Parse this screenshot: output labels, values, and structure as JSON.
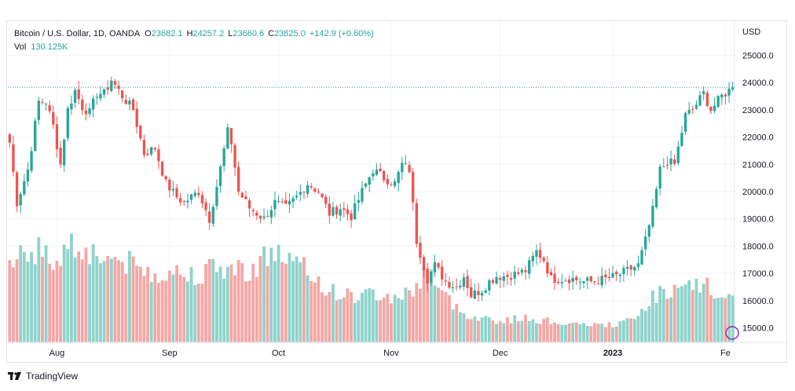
{
  "header": {
    "symbol": "Bitcoin / U.S. Dollar, 1D, OANDA",
    "open_label": "O",
    "open": "23682.1",
    "high_label": "H",
    "high": "24257.2",
    "low_label": "L",
    "low": "23660.6",
    "close_label": "C",
    "close": "23825.0",
    "change": "+142.9 (+0.60%)",
    "vol_label": "Vol",
    "vol": "130.125K"
  },
  "currency": "USD",
  "footer": {
    "brand": "TradingView"
  },
  "colors": {
    "up": "#26a69a",
    "down": "#ef5350",
    "vol_up": "#8fd3cb",
    "vol_down": "#f4a7a5",
    "grid": "#f0f3fa",
    "price_line": "#26a69a"
  },
  "chart_data": {
    "type": "candlestick",
    "symbol": "BTCUSD",
    "interval": "1D",
    "last_price": 23825.0,
    "y_ticks": [
      "15000.0",
      "16000.0",
      "17000.0",
      "18000.0",
      "19000.0",
      "20000.0",
      "21000.0",
      "22000.0",
      "23000.0",
      "24000.0",
      "25000.0"
    ],
    "y_range": [
      14470,
      26250
    ],
    "x_ticks": [
      {
        "label": "Aug",
        "index": 13
      },
      {
        "label": "Sep",
        "index": 44
      },
      {
        "label": "Oct",
        "index": 74
      },
      {
        "label": "Nov",
        "index": 105
      },
      {
        "label": "Dec",
        "index": 135
      },
      {
        "label": "2023",
        "index": 166
      },
      {
        "label": "Fe",
        "index": 197
      }
    ],
    "close_anchors": [
      [
        0,
        21800
      ],
      [
        2,
        19600
      ],
      [
        5,
        20800
      ],
      [
        8,
        23300
      ],
      [
        10,
        23300
      ],
      [
        12,
        22400
      ],
      [
        14,
        21000
      ],
      [
        16,
        23000
      ],
      [
        18,
        23700
      ],
      [
        20,
        23100
      ],
      [
        22,
        22900
      ],
      [
        24,
        23600
      ],
      [
        26,
        23600
      ],
      [
        28,
        24100
      ],
      [
        31,
        23500
      ],
      [
        34,
        23000
      ],
      [
        37,
        21400
      ],
      [
        40,
        21600
      ],
      [
        43,
        20300
      ],
      [
        46,
        19800
      ],
      [
        48,
        19600
      ],
      [
        52,
        20000
      ],
      [
        55,
        19000
      ],
      [
        57,
        20200
      ],
      [
        60,
        22200
      ],
      [
        61,
        21800
      ],
      [
        63,
        20000
      ],
      [
        66,
        19400
      ],
      [
        70,
        19000
      ],
      [
        73,
        19600
      ],
      [
        76,
        19400
      ],
      [
        79,
        19800
      ],
      [
        82,
        20300
      ],
      [
        85,
        20000
      ],
      [
        88,
        19200
      ],
      [
        91,
        19400
      ],
      [
        94,
        19100
      ],
      [
        97,
        20000
      ],
      [
        100,
        20800
      ],
      [
        103,
        20500
      ],
      [
        106,
        20300
      ],
      [
        108,
        21000
      ],
      [
        110,
        20800
      ],
      [
        112,
        18200
      ],
      [
        115,
        16800
      ],
      [
        117,
        17300
      ],
      [
        120,
        16700
      ],
      [
        123,
        16500
      ],
      [
        125,
        16900
      ],
      [
        127,
        16200
      ],
      [
        130,
        16400
      ],
      [
        132,
        16700
      ],
      [
        134,
        16900
      ],
      [
        137,
        16900
      ],
      [
        140,
        17000
      ],
      [
        142,
        17100
      ],
      [
        145,
        17800
      ],
      [
        147,
        17500
      ],
      [
        149,
        16800
      ],
      [
        152,
        16800
      ],
      [
        155,
        16800
      ],
      [
        158,
        16700
      ],
      [
        161,
        16700
      ],
      [
        164,
        16800
      ],
      [
        167,
        16900
      ],
      [
        170,
        17100
      ],
      [
        173,
        17300
      ],
      [
        175,
        18200
      ],
      [
        177,
        19300
      ],
      [
        179,
        20800
      ],
      [
        181,
        21100
      ],
      [
        183,
        21000
      ],
      [
        186,
        22800
      ],
      [
        188,
        23000
      ],
      [
        191,
        23600
      ],
      [
        193,
        23000
      ],
      [
        196,
        23500
      ],
      [
        199,
        23825
      ]
    ],
    "volume_anchors": [
      [
        0,
        115
      ],
      [
        4,
        125
      ],
      [
        8,
        120
      ],
      [
        12,
        105
      ],
      [
        16,
        130
      ],
      [
        20,
        125
      ],
      [
        24,
        115
      ],
      [
        28,
        110
      ],
      [
        32,
        105
      ],
      [
        36,
        95
      ],
      [
        40,
        90
      ],
      [
        44,
        95
      ],
      [
        48,
        88
      ],
      [
        52,
        92
      ],
      [
        56,
        95
      ],
      [
        60,
        98
      ],
      [
        64,
        95
      ],
      [
        68,
        100
      ],
      [
        72,
        120
      ],
      [
        76,
        110
      ],
      [
        80,
        98
      ],
      [
        84,
        85
      ],
      [
        88,
        68
      ],
      [
        92,
        62
      ],
      [
        96,
        60
      ],
      [
        100,
        65
      ],
      [
        104,
        58
      ],
      [
        108,
        62
      ],
      [
        112,
        70
      ],
      [
        115,
        105
      ],
      [
        118,
        68
      ],
      [
        121,
        55
      ],
      [
        124,
        40
      ],
      [
        127,
        35
      ],
      [
        130,
        32
      ],
      [
        133,
        30
      ],
      [
        136,
        27
      ],
      [
        140,
        32
      ],
      [
        144,
        30
      ],
      [
        148,
        28
      ],
      [
        152,
        26
      ],
      [
        156,
        22
      ],
      [
        160,
        24
      ],
      [
        164,
        22
      ],
      [
        168,
        25
      ],
      [
        172,
        30
      ],
      [
        176,
        55
      ],
      [
        180,
        70
      ],
      [
        184,
        65
      ],
      [
        188,
        72
      ],
      [
        192,
        75
      ],
      [
        196,
        58
      ],
      [
        199,
        52
      ]
    ],
    "candle_count": 200
  }
}
